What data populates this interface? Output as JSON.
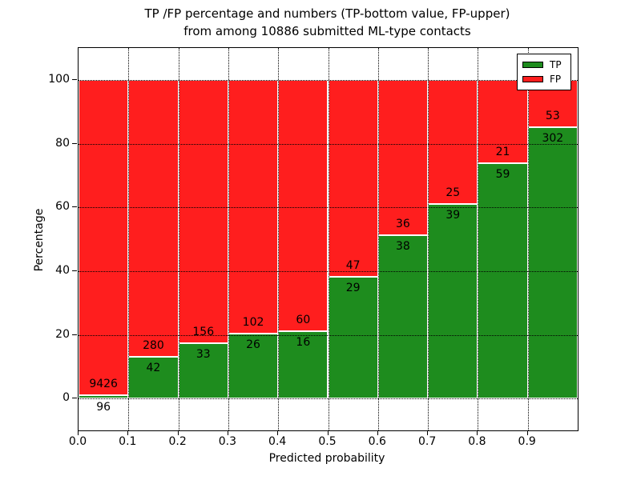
{
  "chart_data": {
    "type": "bar",
    "stacked": true,
    "title_line1": "TP /FP percentage and numbers (TP-bottom value, FP-upper)",
    "title_line2": "from among 10886 submitted ML-type contacts",
    "xlabel": "Predicted probability",
    "ylabel": "Percentage",
    "total_submitted_contacts": "10886",
    "categories": [
      "0.0",
      "0.1",
      "0.2",
      "0.3",
      "0.4",
      "0.5",
      "0.6",
      "0.7",
      "0.8",
      "0.9"
    ],
    "bin_width": 0.1,
    "y_ticks": [
      0,
      20,
      40,
      60,
      80,
      100
    ],
    "ylim": [
      -10,
      110
    ],
    "xlim": [
      0.0,
      1.0
    ],
    "grid": "dotted",
    "grid_color": "#000000",
    "bar_edge_color": "#ffffff",
    "series": [
      {
        "name": "TP",
        "color": "#1e8c1e",
        "counts": [
          96,
          42,
          33,
          26,
          16,
          29,
          38,
          39,
          59,
          302
        ]
      },
      {
        "name": "FP",
        "color": "#ff1e1e",
        "counts": [
          9426,
          280,
          156,
          102,
          60,
          47,
          36,
          25,
          21,
          53
        ]
      }
    ],
    "tp_percent": [
      1.0,
      13.0,
      17.5,
      20.3,
      21.1,
      38.2,
      51.4,
      60.9,
      73.8,
      85.1
    ],
    "legend": {
      "position": "upper right",
      "entries": [
        "TP",
        "FP"
      ]
    }
  }
}
